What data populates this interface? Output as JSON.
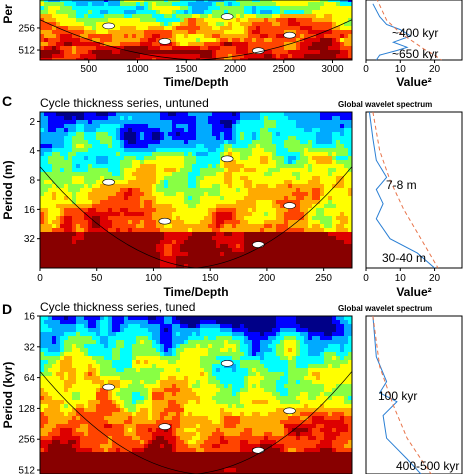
{
  "chart_data": [
    {
      "panel": "",
      "type": "heatmap",
      "title": "",
      "xlabel": "Time/Depth",
      "ylabel": "Per",
      "x_ticks": [
        "500",
        "1000",
        "1500",
        "2000",
        "2500",
        "3000"
      ],
      "x_tick_values": [
        500,
        1000,
        1500,
        2000,
        2500,
        3000
      ],
      "xlim": [
        0,
        3200
      ],
      "y_ticks": [
        "256",
        "512"
      ],
      "y_tick_values": [
        256,
        512
      ],
      "ylim": [
        100,
        700
      ],
      "y_scale": "log",
      "colormap": [
        "#000088",
        "#0000ff",
        "#00aaff",
        "#00ffff",
        "#88ff44",
        "#ffff00",
        "#ffaa00",
        "#ff4400",
        "#dd0000",
        "#880000"
      ],
      "spectrum": {
        "xlabel": "Value²",
        "x_ticks": [
          "0",
          "10",
          "20"
        ],
        "x_tick_values": [
          0,
          10,
          20
        ],
        "xlim": [
          0,
          28
        ],
        "annotations": [
          "~400 kyr",
          "~650 kyr"
        ],
        "series": [
          {
            "color": "#2a7fd4",
            "points": [
              [
                2,
                120
              ],
              [
                4,
                180
              ],
              [
                6,
                230
              ],
              [
                10,
                270
              ],
              [
                13,
                330
              ],
              [
                8,
                400
              ],
              [
                12,
                470
              ],
              [
                9,
                520
              ],
              [
                4,
                600
              ],
              [
                3,
                700
              ]
            ]
          },
          {
            "color": "#e8744a",
            "dashed": true,
            "points": [
              [
                3,
                100
              ],
              [
                6,
                200
              ],
              [
                10,
                300
              ],
              [
                14,
                400
              ],
              [
                17,
                500
              ],
              [
                20,
                600
              ],
              [
                22,
                700
              ]
            ]
          }
        ]
      }
    },
    {
      "panel": "C",
      "type": "heatmap",
      "title": "Cycle thickness series, untuned",
      "xlabel": "Time/Depth",
      "ylabel": "Period (m)",
      "x_ticks": [
        "0",
        "50",
        "100",
        "150",
        "200",
        "250"
      ],
      "x_tick_values": [
        0,
        50,
        100,
        150,
        200,
        250
      ],
      "xlim": [
        0,
        275
      ],
      "y_ticks": [
        "2",
        "4",
        "8",
        "16",
        "32"
      ],
      "y_tick_values": [
        2,
        4,
        8,
        16,
        32
      ],
      "ylim": [
        1.6,
        64
      ],
      "y_scale": "log",
      "spectrum": {
        "title": "Global wavelet spectrum",
        "xlabel": "Value²",
        "x_ticks": [
          "0",
          "10",
          "20"
        ],
        "x_tick_values": [
          0,
          10,
          20
        ],
        "xlim": [
          0,
          28
        ],
        "annotations": [
          "7-8 m",
          "30-40 m"
        ],
        "series": [
          {
            "color": "#2a7fd4",
            "points": [
              [
                1,
                1.6
              ],
              [
                2,
                3
              ],
              [
                3,
                5
              ],
              [
                6,
                7.5
              ],
              [
                3,
                10
              ],
              [
                5,
                14
              ],
              [
                3,
                20
              ],
              [
                7,
                32
              ],
              [
                15,
                45
              ],
              [
                20,
                64
              ]
            ]
          },
          {
            "color": "#e8744a",
            "dashed": true,
            "points": [
              [
                2,
                1.6
              ],
              [
                4,
                4
              ],
              [
                7,
                8
              ],
              [
                11,
                16
              ],
              [
                16,
                32
              ],
              [
                21,
                64
              ]
            ]
          }
        ]
      }
    },
    {
      "panel": "D",
      "type": "heatmap",
      "title": "Cycle thickness series, tuned",
      "xlabel": "",
      "ylabel": "Period (kyr)",
      "x_ticks": [],
      "xlim": [
        0,
        3200
      ],
      "y_ticks": [
        "16",
        "32",
        "64",
        "128",
        "256",
        "512"
      ],
      "y_tick_values": [
        16,
        32,
        64,
        128,
        256,
        512
      ],
      "ylim": [
        16,
        560
      ],
      "y_scale": "log",
      "spectrum": {
        "title": "Global wavelet spectrum",
        "annotations": [
          "100 kyr",
          "400-500 kyr"
        ],
        "series": [
          {
            "color": "#2a7fd4",
            "points": [
              [
                2,
                16
              ],
              [
                3,
                40
              ],
              [
                6,
                70
              ],
              [
                4,
                90
              ],
              [
                9,
                110
              ],
              [
                5,
                150
              ],
              [
                6,
                250
              ],
              [
                12,
                400
              ],
              [
                16,
                560
              ]
            ]
          },
          {
            "color": "#e8744a",
            "dashed": true,
            "points": [
              [
                2,
                16
              ],
              [
                4,
                50
              ],
              [
                8,
                120
              ],
              [
                12,
                250
              ],
              [
                16,
                400
              ],
              [
                19,
                560
              ]
            ]
          }
        ]
      }
    }
  ]
}
